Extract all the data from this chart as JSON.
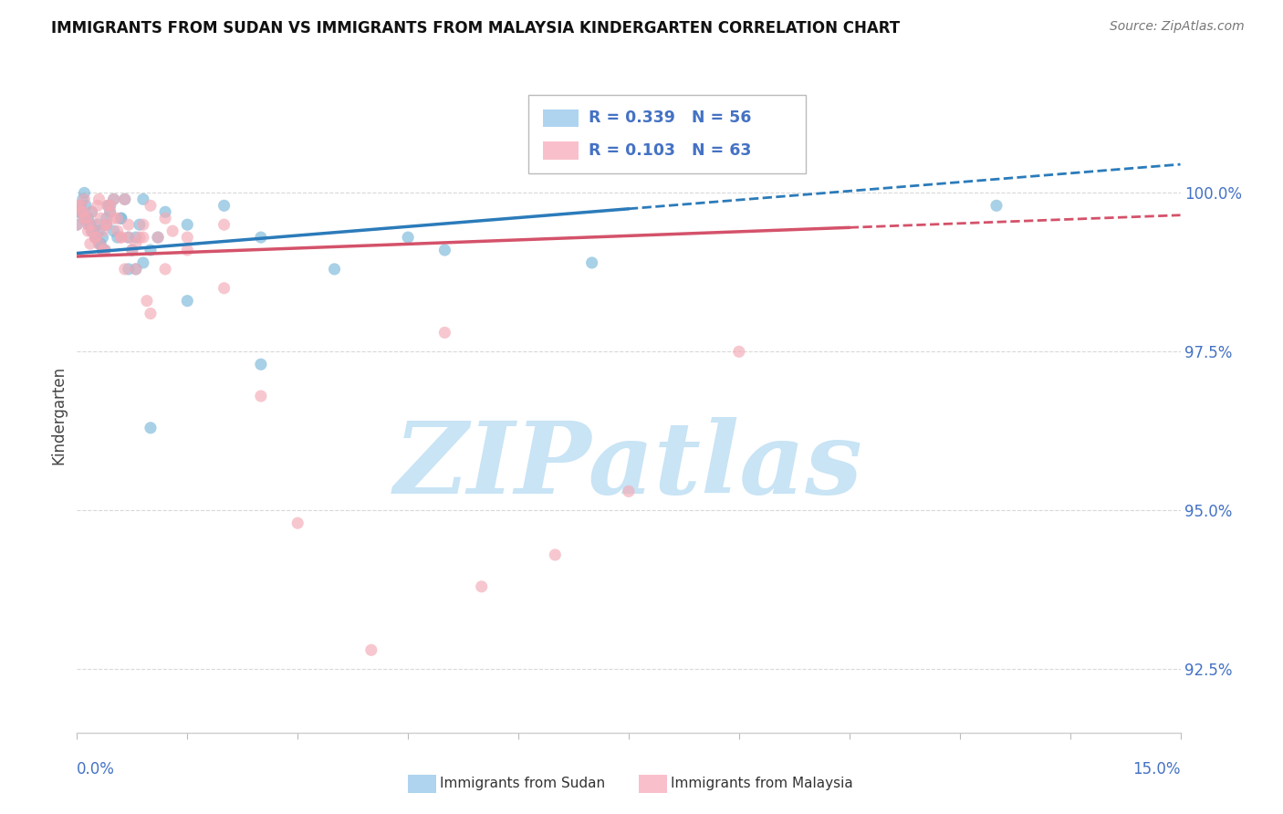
{
  "title": "IMMIGRANTS FROM SUDAN VS IMMIGRANTS FROM MALAYSIA KINDERGARTEN CORRELATION CHART",
  "source": "Source: ZipAtlas.com",
  "ylabel": "Kindergarten",
  "xlim": [
    0.0,
    15.0
  ],
  "ylim": [
    91.5,
    101.5
  ],
  "yticks": [
    92.5,
    95.0,
    97.5,
    100.0
  ],
  "ytick_labels": [
    "92.5%",
    "95.0%",
    "97.5%",
    "100.0%"
  ],
  "sudan_points_x": [
    0.05,
    0.08,
    0.1,
    0.12,
    0.15,
    0.18,
    0.2,
    0.22,
    0.25,
    0.28,
    0.3,
    0.32,
    0.35,
    0.38,
    0.4,
    0.42,
    0.45,
    0.5,
    0.55,
    0.6,
    0.65,
    0.7,
    0.75,
    0.8,
    0.85,
    0.9,
    1.0,
    1.1,
    1.2,
    1.5,
    2.0,
    2.5,
    4.5,
    12.5,
    0.0,
    0.05,
    0.1,
    0.15,
    0.2,
    0.25,
    0.3,
    0.35,
    0.4,
    0.45,
    0.5,
    0.6,
    0.7,
    0.8,
    0.9,
    1.0,
    1.5,
    2.5,
    3.5,
    5.0,
    7.0,
    0.0
  ],
  "sudan_points_y": [
    99.8,
    99.9,
    100.0,
    99.8,
    99.6,
    99.5,
    99.7,
    99.4,
    99.3,
    99.5,
    99.4,
    99.2,
    99.3,
    99.1,
    99.6,
    99.8,
    99.7,
    99.4,
    99.3,
    99.6,
    99.9,
    99.3,
    99.1,
    98.8,
    99.5,
    99.9,
    99.1,
    99.3,
    99.7,
    99.5,
    99.8,
    97.3,
    99.3,
    99.8,
    99.7,
    99.7,
    99.6,
    99.5,
    99.4,
    99.3,
    99.2,
    99.1,
    99.5,
    99.8,
    99.9,
    99.6,
    98.8,
    99.3,
    98.9,
    96.3,
    98.3,
    99.3,
    98.8,
    99.1,
    98.9,
    99.5
  ],
  "malaysia_points_x": [
    0.0,
    0.05,
    0.08,
    0.1,
    0.12,
    0.15,
    0.18,
    0.2,
    0.22,
    0.25,
    0.28,
    0.3,
    0.32,
    0.35,
    0.38,
    0.4,
    0.42,
    0.45,
    0.5,
    0.55,
    0.6,
    0.65,
    0.7,
    0.8,
    0.9,
    1.0,
    1.2,
    1.5,
    2.0,
    5.0,
    0.0,
    0.05,
    0.1,
    0.15,
    0.2,
    0.25,
    0.3,
    0.35,
    0.4,
    0.45,
    0.5,
    0.55,
    0.6,
    0.65,
    0.7,
    0.75,
    0.8,
    0.85,
    0.9,
    0.95,
    1.0,
    1.1,
    1.2,
    1.3,
    1.5,
    2.0,
    2.5,
    3.0,
    4.0,
    5.5,
    6.5,
    7.5,
    9.0
  ],
  "malaysia_points_y": [
    99.5,
    99.8,
    99.7,
    99.9,
    99.6,
    99.4,
    99.2,
    99.7,
    99.5,
    99.3,
    99.8,
    99.9,
    99.6,
    99.4,
    99.1,
    99.5,
    99.8,
    99.7,
    99.6,
    99.4,
    99.3,
    99.9,
    99.5,
    99.2,
    99.3,
    99.8,
    99.6,
    99.3,
    99.5,
    97.8,
    99.8,
    99.7,
    99.6,
    99.5,
    99.4,
    99.3,
    99.2,
    99.1,
    99.5,
    99.8,
    99.9,
    99.6,
    99.3,
    98.8,
    99.3,
    99.1,
    98.8,
    99.3,
    99.5,
    98.3,
    98.1,
    99.3,
    98.8,
    99.4,
    99.1,
    98.5,
    96.8,
    94.8,
    92.8,
    93.8,
    94.3,
    95.3,
    97.5
  ],
  "sudan_color": "#7ab8d9",
  "malaysia_color": "#f4aab6",
  "legend_sudan_color": "#aed4f0",
  "legend_malaysia_color": "#f9c0cb",
  "blue_line_color": "#2b7bba",
  "pink_line_color": "#d4526a",
  "reg_blue_x0": 0.0,
  "reg_blue_y0": 99.05,
  "reg_blue_x1": 15.0,
  "reg_blue_y1": 100.45,
  "reg_pink_x0": 0.0,
  "reg_pink_y0": 99.0,
  "reg_pink_x1": 15.0,
  "reg_pink_y1": 99.65,
  "reg_blue_solid_end": 7.5,
  "reg_pink_solid_end": 10.5,
  "watermark": "ZIPatlas",
  "watermark_color": "#c8e4f5",
  "background_color": "#ffffff",
  "grid_color": "#d8d8d8",
  "R_sudan": 0.339,
  "N_sudan": 56,
  "R_malaysia": 0.103,
  "N_malaysia": 63
}
